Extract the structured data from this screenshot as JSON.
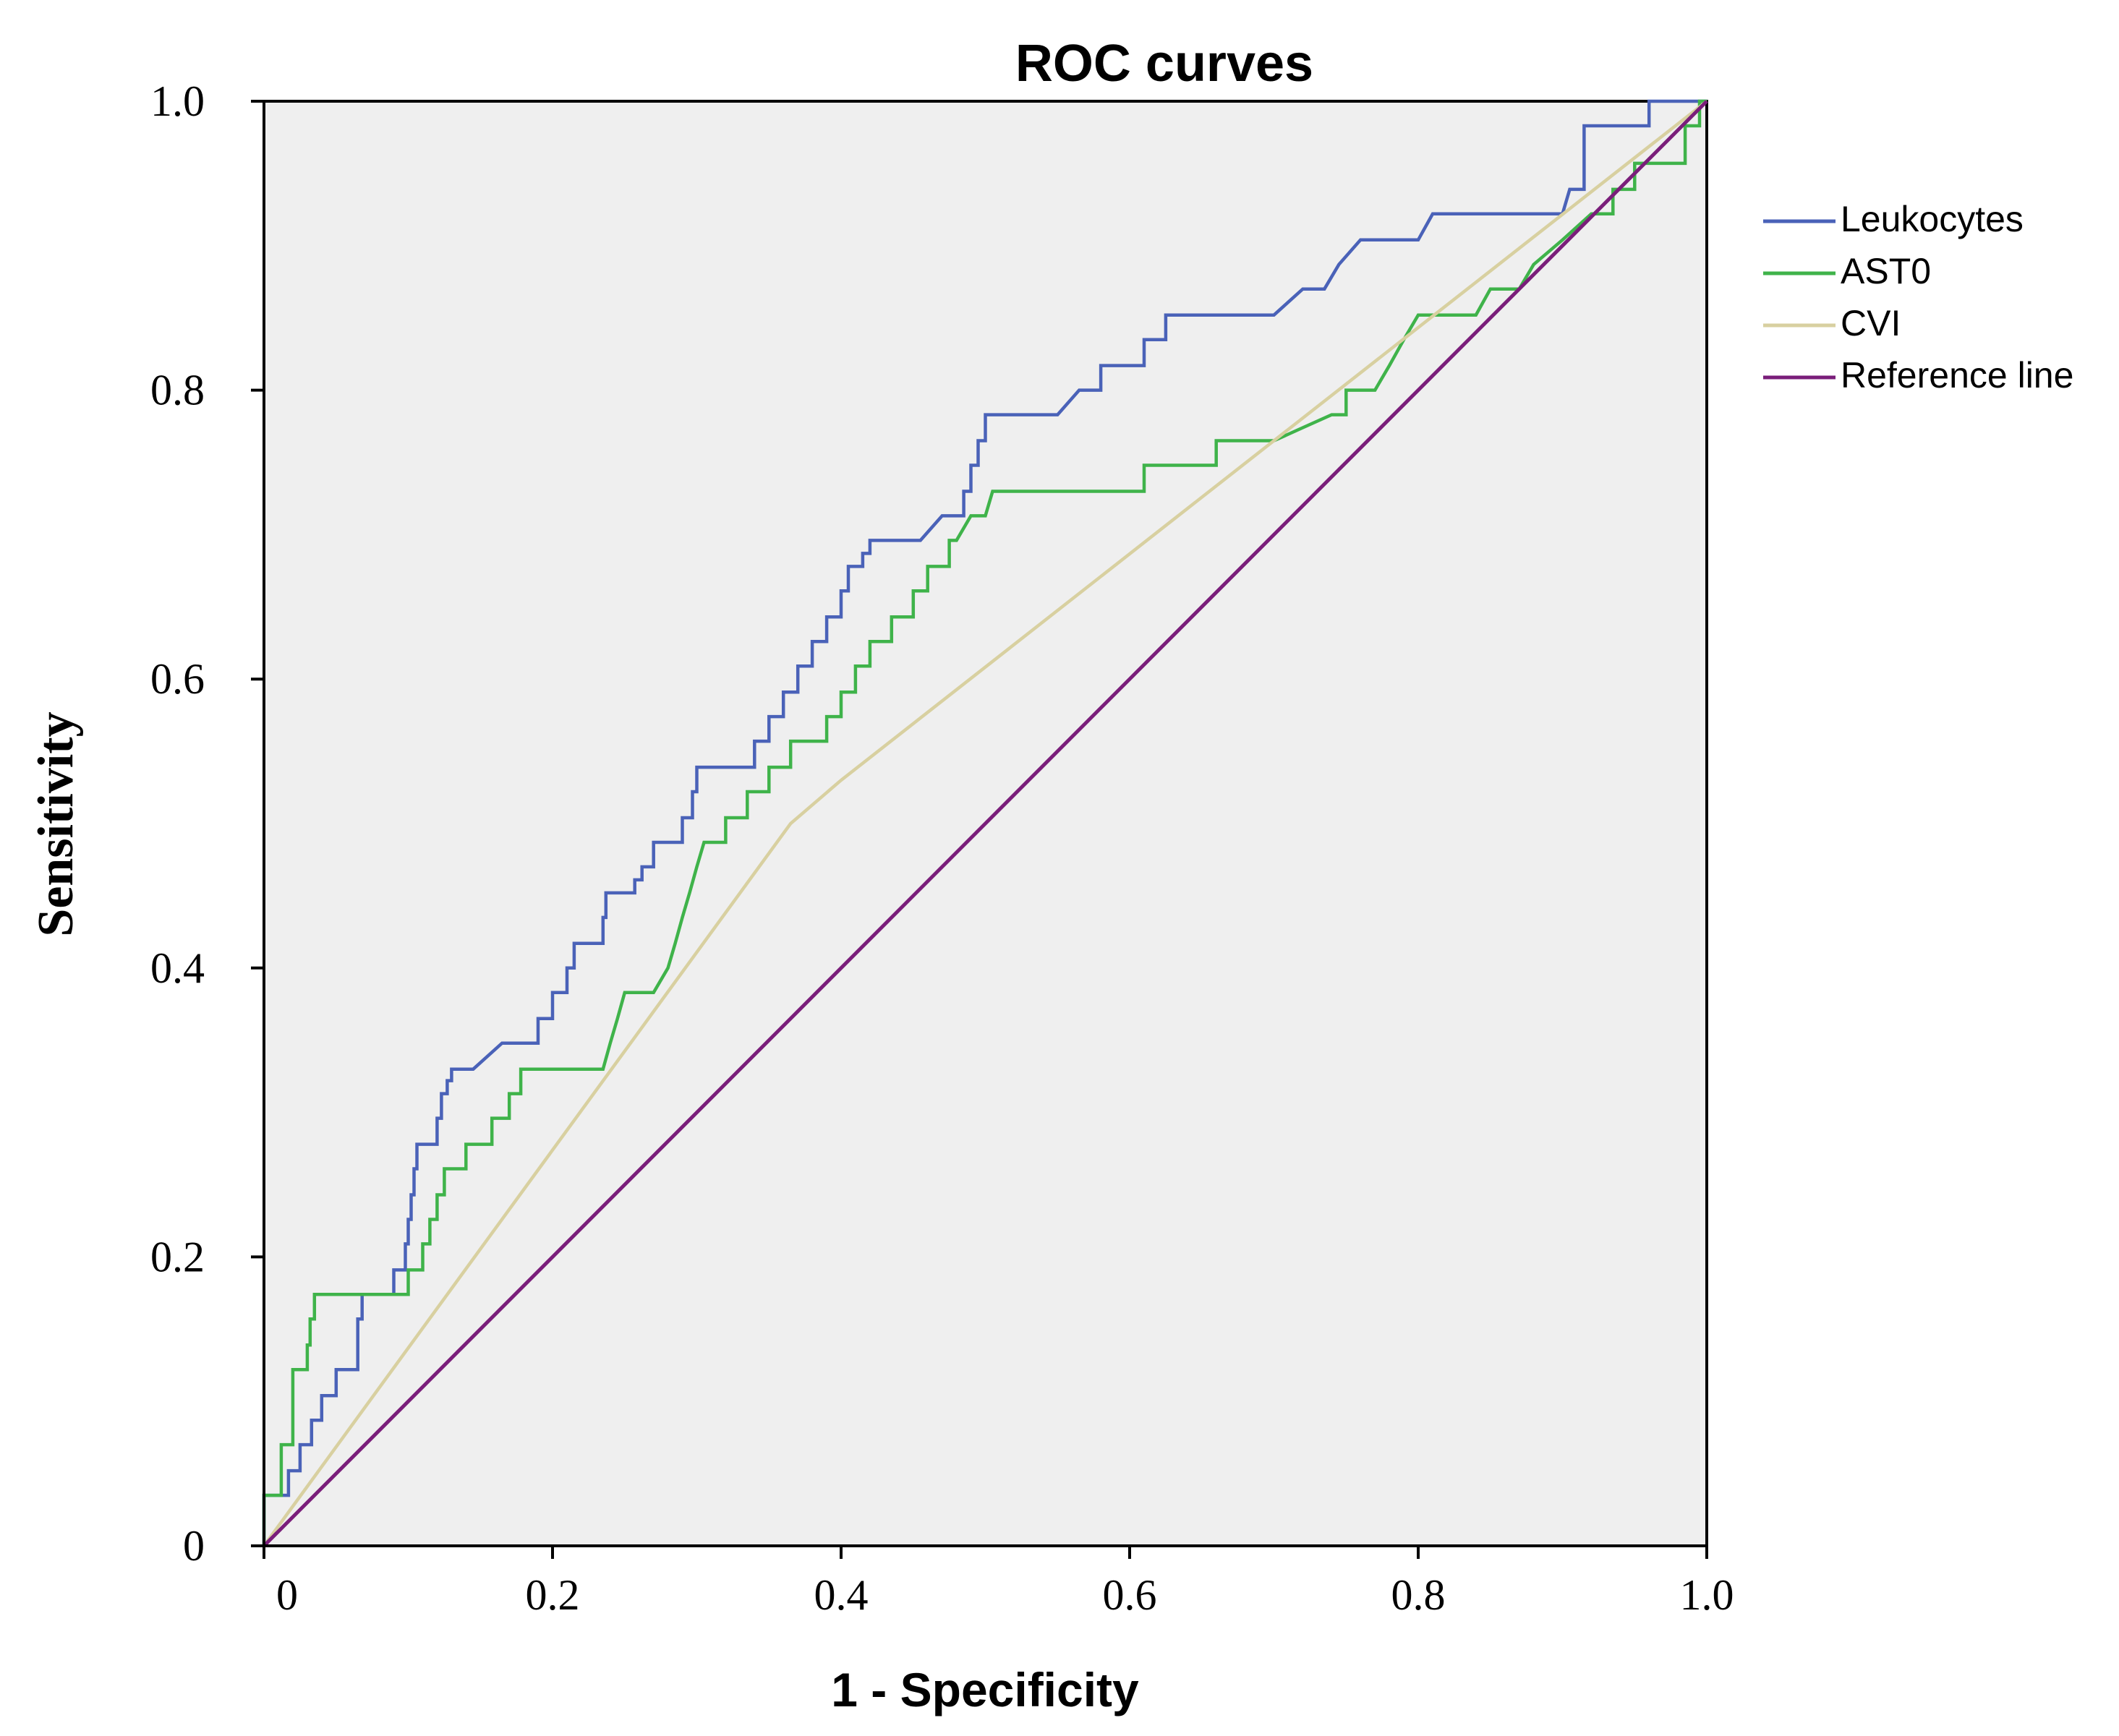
{
  "chart_data": {
    "type": "line",
    "title": "ROC curves",
    "xlabel": "1 - Specificity",
    "ylabel": "Sensitivity",
    "xlim": [
      0,
      1
    ],
    "ylim": [
      0,
      1
    ],
    "x_ticks": [
      {
        "value": 0,
        "label": "0"
      },
      {
        "value": 0.2,
        "label": "0.2"
      },
      {
        "value": 0.4,
        "label": "0.4"
      },
      {
        "value": 0.6,
        "label": "0.6"
      },
      {
        "value": 0.8,
        "label": "0.8"
      },
      {
        "value": 1.0,
        "label": "1.0"
      }
    ],
    "y_ticks": [
      {
        "value": 0,
        "label": "0"
      },
      {
        "value": 0.2,
        "label": "0.2"
      },
      {
        "value": 0.4,
        "label": "0.4"
      },
      {
        "value": 0.6,
        "label": "0.6"
      },
      {
        "value": 0.8,
        "label": "0.8"
      },
      {
        "value": 1.0,
        "label": "1.0"
      }
    ],
    "grid": false,
    "legend_position": "right",
    "plot_background": "#efefef",
    "series": [
      {
        "name": "Leukocytes",
        "color": "#4a62b8",
        "points": [
          [
            0,
            0
          ],
          [
            0,
            0.035
          ],
          [
            0.017,
            0.035
          ],
          [
            0.017,
            0.052
          ],
          [
            0.025,
            0.052
          ],
          [
            0.025,
            0.07
          ],
          [
            0.033,
            0.07
          ],
          [
            0.033,
            0.087
          ],
          [
            0.04,
            0.087
          ],
          [
            0.04,
            0.104
          ],
          [
            0.05,
            0.104
          ],
          [
            0.05,
            0.122
          ],
          [
            0.065,
            0.122
          ],
          [
            0.065,
            0.157
          ],
          [
            0.068,
            0.157
          ],
          [
            0.068,
            0.174
          ],
          [
            0.09,
            0.174
          ],
          [
            0.09,
            0.191
          ],
          [
            0.098,
            0.191
          ],
          [
            0.098,
            0.209
          ],
          [
            0.1,
            0.209
          ],
          [
            0.1,
            0.226
          ],
          [
            0.102,
            0.226
          ],
          [
            0.102,
            0.243
          ],
          [
            0.104,
            0.243
          ],
          [
            0.104,
            0.261
          ],
          [
            0.106,
            0.261
          ],
          [
            0.106,
            0.278
          ],
          [
            0.12,
            0.278
          ],
          [
            0.12,
            0.296
          ],
          [
            0.123,
            0.296
          ],
          [
            0.123,
            0.313
          ],
          [
            0.127,
            0.313
          ],
          [
            0.127,
            0.322
          ],
          [
            0.13,
            0.322
          ],
          [
            0.13,
            0.33
          ],
          [
            0.145,
            0.33
          ],
          [
            0.165,
            0.348
          ],
          [
            0.19,
            0.348
          ],
          [
            0.19,
            0.365
          ],
          [
            0.2,
            0.365
          ],
          [
            0.2,
            0.383
          ],
          [
            0.21,
            0.383
          ],
          [
            0.21,
            0.4
          ],
          [
            0.215,
            0.4
          ],
          [
            0.215,
            0.417
          ],
          [
            0.235,
            0.417
          ],
          [
            0.235,
            0.435
          ],
          [
            0.237,
            0.435
          ],
          [
            0.237,
            0.452
          ],
          [
            0.257,
            0.452
          ],
          [
            0.257,
            0.461
          ],
          [
            0.262,
            0.461
          ],
          [
            0.262,
            0.47
          ],
          [
            0.27,
            0.47
          ],
          [
            0.27,
            0.487
          ],
          [
            0.29,
            0.487
          ],
          [
            0.29,
            0.504
          ],
          [
            0.297,
            0.504
          ],
          [
            0.297,
            0.522
          ],
          [
            0.3,
            0.522
          ],
          [
            0.3,
            0.539
          ],
          [
            0.34,
            0.539
          ],
          [
            0.34,
            0.557
          ],
          [
            0.35,
            0.557
          ],
          [
            0.35,
            0.574
          ],
          [
            0.36,
            0.574
          ],
          [
            0.36,
            0.591
          ],
          [
            0.37,
            0.591
          ],
          [
            0.37,
            0.609
          ],
          [
            0.38,
            0.609
          ],
          [
            0.38,
            0.626
          ],
          [
            0.39,
            0.626
          ],
          [
            0.39,
            0.643
          ],
          [
            0.4,
            0.643
          ],
          [
            0.4,
            0.661
          ],
          [
            0.405,
            0.661
          ],
          [
            0.405,
            0.678
          ],
          [
            0.415,
            0.678
          ],
          [
            0.415,
            0.687
          ],
          [
            0.42,
            0.687
          ],
          [
            0.42,
            0.696
          ],
          [
            0.455,
            0.696
          ],
          [
            0.47,
            0.713
          ],
          [
            0.485,
            0.713
          ],
          [
            0.485,
            0.73
          ],
          [
            0.49,
            0.73
          ],
          [
            0.49,
            0.748
          ],
          [
            0.495,
            0.748
          ],
          [
            0.495,
            0.765
          ],
          [
            0.5,
            0.765
          ],
          [
            0.5,
            0.783
          ],
          [
            0.55,
            0.783
          ],
          [
            0.565,
            0.8
          ],
          [
            0.58,
            0.8
          ],
          [
            0.58,
            0.817
          ],
          [
            0.61,
            0.817
          ],
          [
            0.61,
            0.835
          ],
          [
            0.625,
            0.835
          ],
          [
            0.625,
            0.852
          ],
          [
            0.7,
            0.852
          ],
          [
            0.72,
            0.87
          ],
          [
            0.735,
            0.87
          ],
          [
            0.745,
            0.887
          ],
          [
            0.76,
            0.904
          ],
          [
            0.8,
            0.904
          ],
          [
            0.81,
            0.922
          ],
          [
            0.9,
            0.922
          ],
          [
            0.905,
            0.939
          ],
          [
            0.915,
            0.939
          ],
          [
            0.915,
            0.983
          ],
          [
            0.96,
            0.983
          ],
          [
            0.96,
            1.0
          ],
          [
            1.0,
            1.0
          ]
        ]
      },
      {
        "name": "AST0",
        "color": "#3fb34a",
        "points": [
          [
            0,
            0
          ],
          [
            0,
            0.035
          ],
          [
            0.012,
            0.035
          ],
          [
            0.012,
            0.07
          ],
          [
            0.02,
            0.07
          ],
          [
            0.02,
            0.122
          ],
          [
            0.03,
            0.122
          ],
          [
            0.03,
            0.139
          ],
          [
            0.032,
            0.139
          ],
          [
            0.032,
            0.157
          ],
          [
            0.035,
            0.157
          ],
          [
            0.035,
            0.174
          ],
          [
            0.1,
            0.174
          ],
          [
            0.1,
            0.191
          ],
          [
            0.11,
            0.191
          ],
          [
            0.11,
            0.209
          ],
          [
            0.115,
            0.209
          ],
          [
            0.115,
            0.226
          ],
          [
            0.12,
            0.226
          ],
          [
            0.12,
            0.243
          ],
          [
            0.125,
            0.243
          ],
          [
            0.125,
            0.261
          ],
          [
            0.14,
            0.261
          ],
          [
            0.14,
            0.278
          ],
          [
            0.158,
            0.278
          ],
          [
            0.158,
            0.296
          ],
          [
            0.17,
            0.296
          ],
          [
            0.17,
            0.313
          ],
          [
            0.178,
            0.313
          ],
          [
            0.178,
            0.33
          ],
          [
            0.235,
            0.33
          ],
          [
            0.24,
            0.348
          ],
          [
            0.245,
            0.365
          ],
          [
            0.25,
            0.383
          ],
          [
            0.27,
            0.383
          ],
          [
            0.28,
            0.4
          ],
          [
            0.285,
            0.417
          ],
          [
            0.29,
            0.435
          ],
          [
            0.295,
            0.452
          ],
          [
            0.3,
            0.47
          ],
          [
            0.305,
            0.487
          ],
          [
            0.32,
            0.487
          ],
          [
            0.32,
            0.504
          ],
          [
            0.335,
            0.504
          ],
          [
            0.335,
            0.522
          ],
          [
            0.35,
            0.522
          ],
          [
            0.35,
            0.539
          ],
          [
            0.365,
            0.539
          ],
          [
            0.365,
            0.557
          ],
          [
            0.39,
            0.557
          ],
          [
            0.39,
            0.574
          ],
          [
            0.4,
            0.574
          ],
          [
            0.4,
            0.591
          ],
          [
            0.41,
            0.591
          ],
          [
            0.41,
            0.609
          ],
          [
            0.42,
            0.609
          ],
          [
            0.42,
            0.626
          ],
          [
            0.435,
            0.626
          ],
          [
            0.435,
            0.643
          ],
          [
            0.45,
            0.643
          ],
          [
            0.45,
            0.661
          ],
          [
            0.46,
            0.661
          ],
          [
            0.46,
            0.678
          ],
          [
            0.475,
            0.678
          ],
          [
            0.475,
            0.696
          ],
          [
            0.48,
            0.696
          ],
          [
            0.49,
            0.713
          ],
          [
            0.5,
            0.713
          ],
          [
            0.505,
            0.73
          ],
          [
            0.57,
            0.73
          ],
          [
            0.61,
            0.73
          ],
          [
            0.61,
            0.748
          ],
          [
            0.66,
            0.748
          ],
          [
            0.66,
            0.765
          ],
          [
            0.7,
            0.765
          ],
          [
            0.72,
            0.774
          ],
          [
            0.74,
            0.783
          ],
          [
            0.75,
            0.783
          ],
          [
            0.75,
            0.8
          ],
          [
            0.77,
            0.8
          ],
          [
            0.78,
            0.817
          ],
          [
            0.79,
            0.835
          ],
          [
            0.8,
            0.852
          ],
          [
            0.84,
            0.852
          ],
          [
            0.85,
            0.87
          ],
          [
            0.87,
            0.87
          ],
          [
            0.88,
            0.887
          ],
          [
            0.9,
            0.904
          ],
          [
            0.92,
            0.922
          ],
          [
            0.935,
            0.922
          ],
          [
            0.935,
            0.939
          ],
          [
            0.95,
            0.939
          ],
          [
            0.95,
            0.957
          ],
          [
            0.985,
            0.957
          ],
          [
            0.985,
            0.983
          ],
          [
            0.995,
            0.983
          ],
          [
            0.995,
            1.0
          ],
          [
            1.0,
            1.0
          ]
        ]
      },
      {
        "name": "CVI",
        "color": "#d8d0a0",
        "points": [
          [
            0,
            0
          ],
          [
            0.365,
            0.5
          ],
          [
            0.4,
            0.53
          ],
          [
            0.7,
            0.765
          ],
          [
            1.0,
            1.0
          ]
        ]
      },
      {
        "name": "Reference line",
        "color": "#7a1e7a",
        "points": [
          [
            0,
            0
          ],
          [
            1,
            1
          ]
        ]
      }
    ]
  }
}
